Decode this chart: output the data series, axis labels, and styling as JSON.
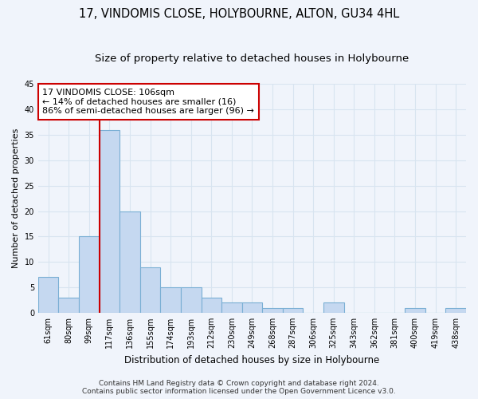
{
  "title": "17, VINDOMIS CLOSE, HOLYBOURNE, ALTON, GU34 4HL",
  "subtitle": "Size of property relative to detached houses in Holybourne",
  "xlabel": "Distribution of detached houses by size in Holybourne",
  "ylabel": "Number of detached properties",
  "categories": [
    "61sqm",
    "80sqm",
    "99sqm",
    "117sqm",
    "136sqm",
    "155sqm",
    "174sqm",
    "193sqm",
    "212sqm",
    "230sqm",
    "249sqm",
    "268sqm",
    "287sqm",
    "306sqm",
    "325sqm",
    "343sqm",
    "362sqm",
    "381sqm",
    "400sqm",
    "419sqm",
    "438sqm"
  ],
  "values": [
    7,
    3,
    15,
    36,
    20,
    9,
    5,
    5,
    3,
    2,
    2,
    1,
    1,
    0,
    2,
    0,
    0,
    0,
    1,
    0,
    1
  ],
  "bar_color": "#c5d8f0",
  "bar_edge_color": "#7aafd4",
  "vline_x": 2.5,
  "vline_color": "#cc0000",
  "annotation_text": "17 VINDOMIS CLOSE: 106sqm\n← 14% of detached houses are smaller (16)\n86% of semi-detached houses are larger (96) →",
  "annotation_box_color": "#ffffff",
  "annotation_box_edge_color": "#cc0000",
  "ylim": [
    0,
    45
  ],
  "yticks": [
    0,
    5,
    10,
    15,
    20,
    25,
    30,
    35,
    40,
    45
  ],
  "footer1": "Contains HM Land Registry data © Crown copyright and database right 2024.",
  "footer2": "Contains public sector information licensed under the Open Government Licence v3.0.",
  "bg_color": "#f0f4fb",
  "grid_color": "#d8e4f0",
  "title_fontsize": 10.5,
  "subtitle_fontsize": 9.5,
  "xlabel_fontsize": 8.5,
  "ylabel_fontsize": 8,
  "tick_fontsize": 7,
  "annotation_fontsize": 8,
  "footer_fontsize": 6.5
}
